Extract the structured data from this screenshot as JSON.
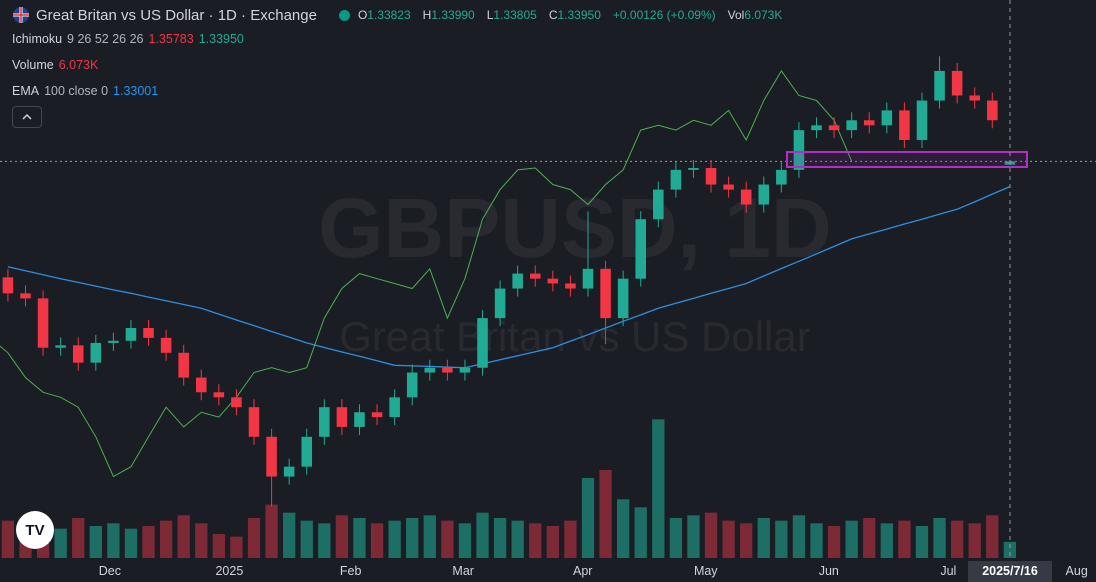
{
  "header": {
    "title": "Great Britan vs US Dollar · 1D · Exchange",
    "watermark_symbol": "GBPUSD, 1D",
    "watermark_name": "Great Britan vs US Dollar",
    "ohlc": [
      {
        "label": "O",
        "value": "1.33823"
      },
      {
        "label": "H",
        "value": "1.33990"
      },
      {
        "label": "L",
        "value": "1.33805"
      },
      {
        "label": "C",
        "value": "1.33950"
      },
      {
        "label": "",
        "value": "+0.00126 (+0.09%)"
      },
      {
        "label": "Vol",
        "value": "6.073K"
      }
    ]
  },
  "legend": {
    "ichimoku": {
      "name": "Ichimoku",
      "params": "9 26 52 26 26",
      "value_red": "1.35783",
      "value_green": "1.33950"
    },
    "volume": {
      "name": "Volume",
      "value": "6.073K"
    },
    "ema": {
      "name": "EMA",
      "params": "100 close 0",
      "value": "1.33001"
    }
  },
  "chart_data": {
    "type": "candlestick",
    "cursor_label": "2025/7/16",
    "up_color": "#22ab94",
    "down_color": "#f23645",
    "volume_up_color": "#1d6f66",
    "volume_down_color": "#7d2a36",
    "ema_color": "#2d8fe0",
    "lagging_color": "#4caf50",
    "xlim": [
      -0.45,
      61.9
    ],
    "xticks": [
      {
        "value": 5.8,
        "label": "Dec"
      },
      {
        "value": 12.6,
        "label": "2025"
      },
      {
        "value": 19.5,
        "label": "Feb"
      },
      {
        "value": 25.9,
        "label": "Mar"
      },
      {
        "value": 32.7,
        "label": "Apr"
      },
      {
        "value": 39.7,
        "label": "May"
      },
      {
        "value": 46.7,
        "label": "Jun"
      },
      {
        "value": 53.5,
        "label": "Jul"
      },
      {
        "value": 60.8,
        "label": "Aug"
      }
    ],
    "ylim": [
      1.19,
      1.4
    ],
    "last_price": 1.3395,
    "vlim": [
      0,
      60000
    ],
    "open": [
      1.296,
      1.29,
      1.2881,
      1.2696,
      1.2705,
      1.264,
      1.2714,
      1.2722,
      1.277,
      1.2733,
      1.2677,
      1.2584,
      1.2529,
      1.251,
      1.2473,
      1.2362,
      1.2213,
      1.225,
      1.2362,
      1.2473,
      1.2399,
      1.2454,
      1.2436,
      1.251,
      1.2603,
      1.2621,
      1.2603,
      1.2621,
      1.2807,
      1.2918,
      1.2974,
      1.2955,
      1.2937,
      1.2918,
      1.2992,
      1.2807,
      1.2955,
      1.3178,
      1.3289,
      1.3363,
      1.337,
      1.3308,
      1.3289,
      1.3233,
      1.3308,
      1.3363,
      1.3512,
      1.353,
      1.3512,
      1.3549,
      1.353,
      1.3586,
      1.3475,
      1.3623,
      1.3734,
      1.3642,
      1.3623,
      1.33823
    ],
    "high": [
      1.299,
      1.293,
      1.2911,
      1.2735,
      1.2735,
      1.2744,
      1.2752,
      1.28,
      1.28,
      1.2763,
      1.2707,
      1.2614,
      1.2559,
      1.254,
      1.2503,
      1.2392,
      1.228,
      1.2392,
      1.2503,
      1.2503,
      1.2484,
      1.2484,
      1.254,
      1.2633,
      1.2651,
      1.2651,
      1.2651,
      1.2837,
      1.2948,
      1.3004,
      1.3004,
      1.2985,
      1.2967,
      1.3207,
      1.3022,
      1.2985,
      1.3208,
      1.3319,
      1.3393,
      1.34,
      1.34,
      1.3338,
      1.3319,
      1.3338,
      1.3393,
      1.3542,
      1.356,
      1.356,
      1.3579,
      1.3579,
      1.3616,
      1.3616,
      1.3653,
      1.3789,
      1.3764,
      1.3672,
      1.3653,
      1.3399
    ],
    "low": [
      1.287,
      1.2851,
      1.2666,
      1.2666,
      1.261,
      1.261,
      1.2684,
      1.2692,
      1.2703,
      1.2647,
      1.2554,
      1.2499,
      1.248,
      1.2443,
      1.2332,
      1.21,
      1.2183,
      1.222,
      1.2332,
      1.2369,
      1.2369,
      1.2406,
      1.2406,
      1.248,
      1.2573,
      1.2573,
      1.2573,
      1.2591,
      1.2777,
      1.2888,
      1.2925,
      1.2907,
      1.2888,
      1.2888,
      1.2709,
      1.2777,
      1.2925,
      1.3148,
      1.3259,
      1.3333,
      1.3278,
      1.3259,
      1.3203,
      1.3203,
      1.3278,
      1.3333,
      1.3482,
      1.3482,
      1.3482,
      1.35,
      1.35,
      1.3445,
      1.3445,
      1.3593,
      1.3612,
      1.3593,
      1.3519,
      1.33805
    ],
    "close": [
      1.29,
      1.2881,
      1.2696,
      1.2705,
      1.264,
      1.2714,
      1.2722,
      1.277,
      1.2733,
      1.2677,
      1.2584,
      1.2529,
      1.251,
      1.2473,
      1.2362,
      1.2213,
      1.225,
      1.2362,
      1.2473,
      1.2399,
      1.2454,
      1.2436,
      1.251,
      1.2603,
      1.2621,
      1.2603,
      1.2621,
      1.2807,
      1.2918,
      1.2974,
      1.2955,
      1.2937,
      1.2918,
      1.2992,
      1.2807,
      1.2955,
      1.3178,
      1.3289,
      1.3363,
      1.337,
      1.3308,
      1.3289,
      1.3233,
      1.3308,
      1.3363,
      1.3512,
      1.353,
      1.3512,
      1.3549,
      1.353,
      1.3586,
      1.3475,
      1.3623,
      1.3734,
      1.3642,
      1.3623,
      1.3549,
      1.3395
    ],
    "volume": [
      14000,
      12000,
      13000,
      11000,
      15000,
      12000,
      13000,
      11000,
      12000,
      14000,
      16000,
      13000,
      9000,
      8000,
      15000,
      20000,
      17000,
      14000,
      13000,
      16000,
      15000,
      13000,
      14000,
      15000,
      16000,
      14000,
      13000,
      17000,
      15000,
      14000,
      13000,
      12000,
      14000,
      30000,
      33000,
      22000,
      19000,
      52000,
      15000,
      16000,
      17000,
      14000,
      13000,
      15000,
      14000,
      16000,
      13000,
      12000,
      14000,
      15000,
      13000,
      14000,
      12000,
      15000,
      14000,
      13000,
      16000,
      6073
    ],
    "ema": [
      1.3,
      1.2985,
      1.297,
      1.2955,
      1.2941,
      1.2927,
      1.2913,
      1.29,
      1.2886,
      1.2872,
      1.2858,
      1.2844,
      1.2822,
      1.28,
      1.2779,
      1.2757,
      1.2736,
      1.2714,
      1.2697,
      1.268,
      1.2664,
      1.2647,
      1.263,
      1.2628,
      1.2626,
      1.2623,
      1.2621,
      1.2636,
      1.2651,
      1.2666,
      1.2681,
      1.2696,
      1.2721,
      1.2745,
      1.277,
      1.2795,
      1.2819,
      1.2844,
      1.2863,
      1.2881,
      1.29,
      1.2918,
      1.2937,
      1.2965,
      1.2993,
      1.302,
      1.3048,
      1.3076,
      1.3104,
      1.3123,
      1.3141,
      1.316,
      1.3178,
      1.3197,
      1.3215,
      1.3243,
      1.3272,
      1.33001
    ]
  }
}
